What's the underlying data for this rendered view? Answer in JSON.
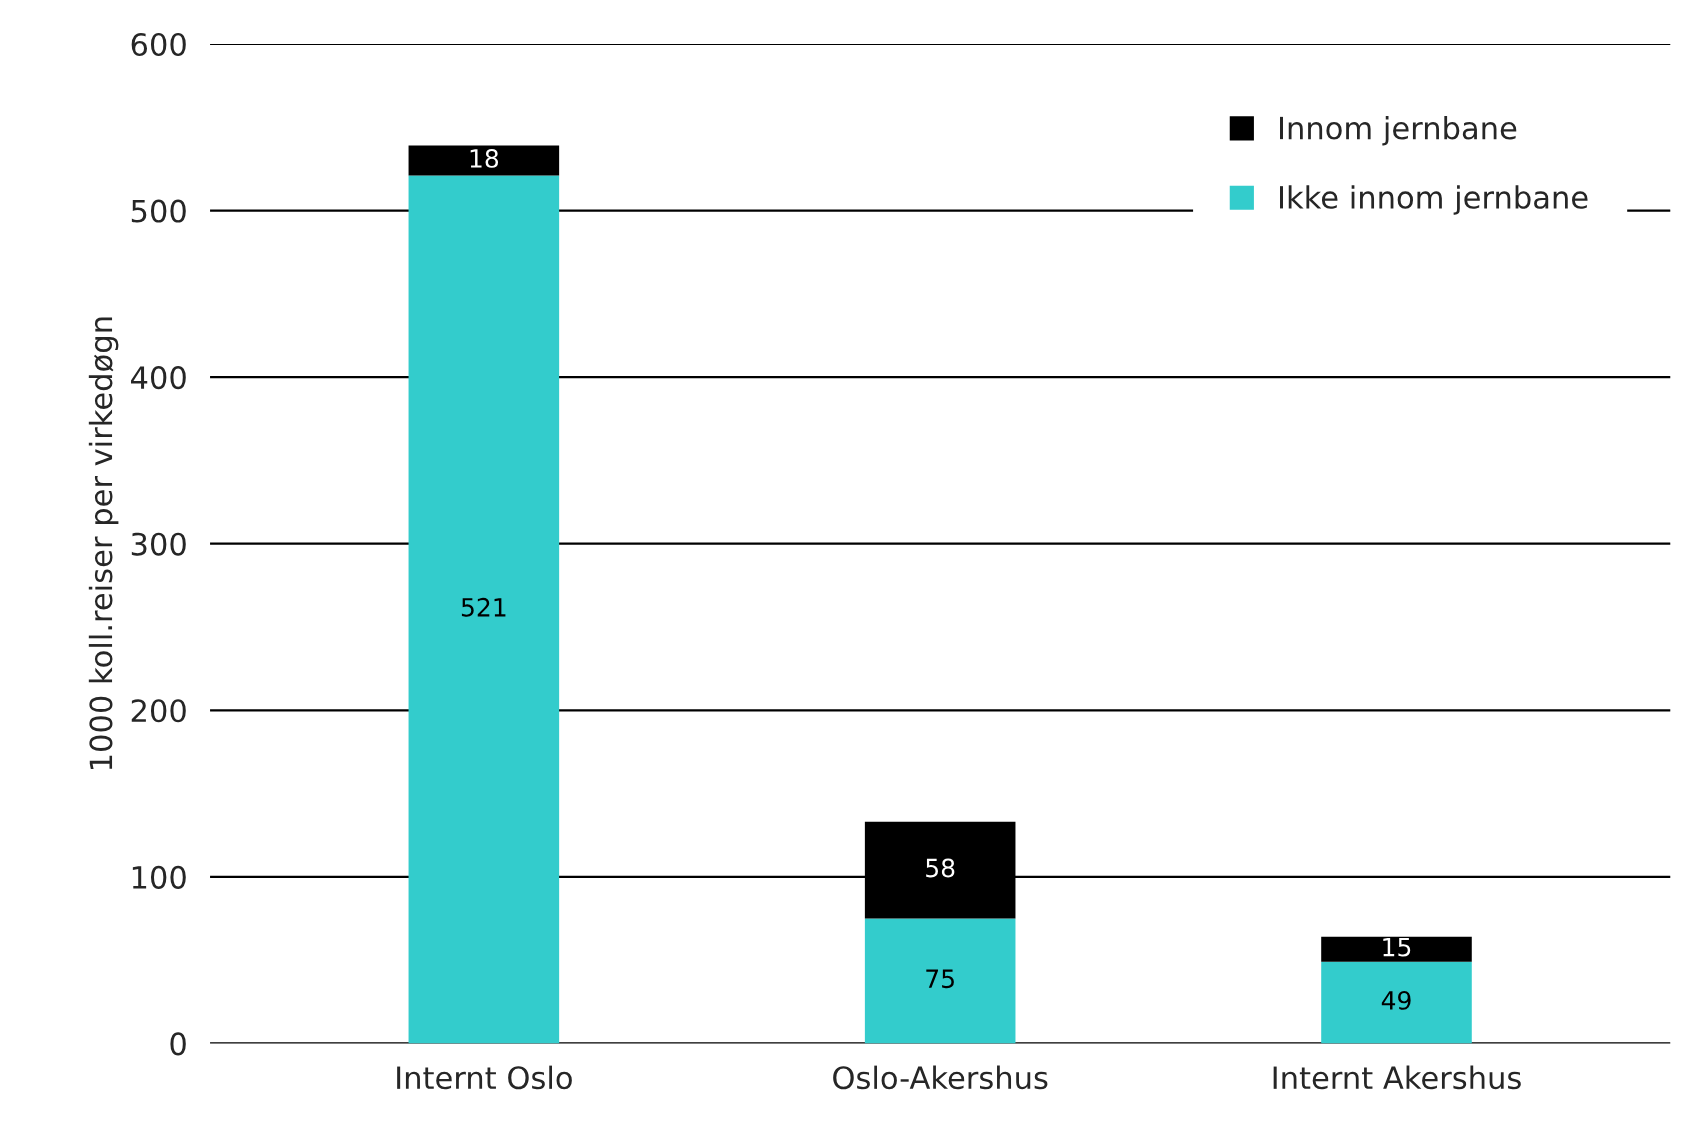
{
  "chart_data": {
    "type": "bar",
    "stacked": true,
    "ylabel": "1000 koll.reiser per virkedøgn",
    "categories": [
      "Internt Oslo",
      "Oslo-Akershus",
      "Internt Akershus"
    ],
    "series": [
      {
        "name": "Ikke innom jernbane",
        "color": "#33cccc",
        "values": [
          521,
          75,
          49
        ]
      },
      {
        "name": "Innom jernbane",
        "color": "#000000",
        "values": [
          18,
          58,
          15
        ]
      }
    ],
    "ylim": [
      0,
      600
    ],
    "yticks": [
      0,
      100,
      200,
      300,
      400,
      500,
      600
    ],
    "grid": "y",
    "legend": "top right",
    "data_labels": true
  }
}
